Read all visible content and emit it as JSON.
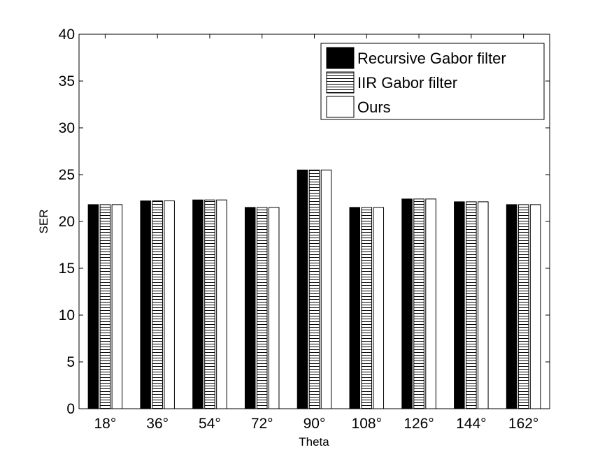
{
  "chart_data": {
    "type": "bar",
    "title": "",
    "xlabel": "Theta",
    "ylabel": "SER",
    "categories": [
      "18°",
      "36°",
      "54°",
      "72°",
      "90°",
      "108°",
      "126°",
      "144°",
      "162°"
    ],
    "ylim": [
      0,
      40
    ],
    "yticks": [
      0,
      5,
      10,
      15,
      20,
      25,
      30,
      35,
      40
    ],
    "grid": false,
    "legend_position": "top-right",
    "series": [
      {
        "name": "Recursive Gabor filter",
        "fill": "solid-black",
        "values": [
          21.8,
          22.2,
          22.3,
          21.5,
          25.5,
          21.5,
          22.4,
          22.1,
          21.8
        ]
      },
      {
        "name": "IIR Gabor filter",
        "fill": "horizontal-hatch",
        "values": [
          21.8,
          22.2,
          22.3,
          21.5,
          25.5,
          21.5,
          22.4,
          22.1,
          21.8
        ]
      },
      {
        "name": "Ours",
        "fill": "white",
        "values": [
          21.8,
          22.2,
          22.3,
          21.5,
          25.5,
          21.5,
          22.4,
          22.1,
          21.8
        ]
      }
    ]
  }
}
